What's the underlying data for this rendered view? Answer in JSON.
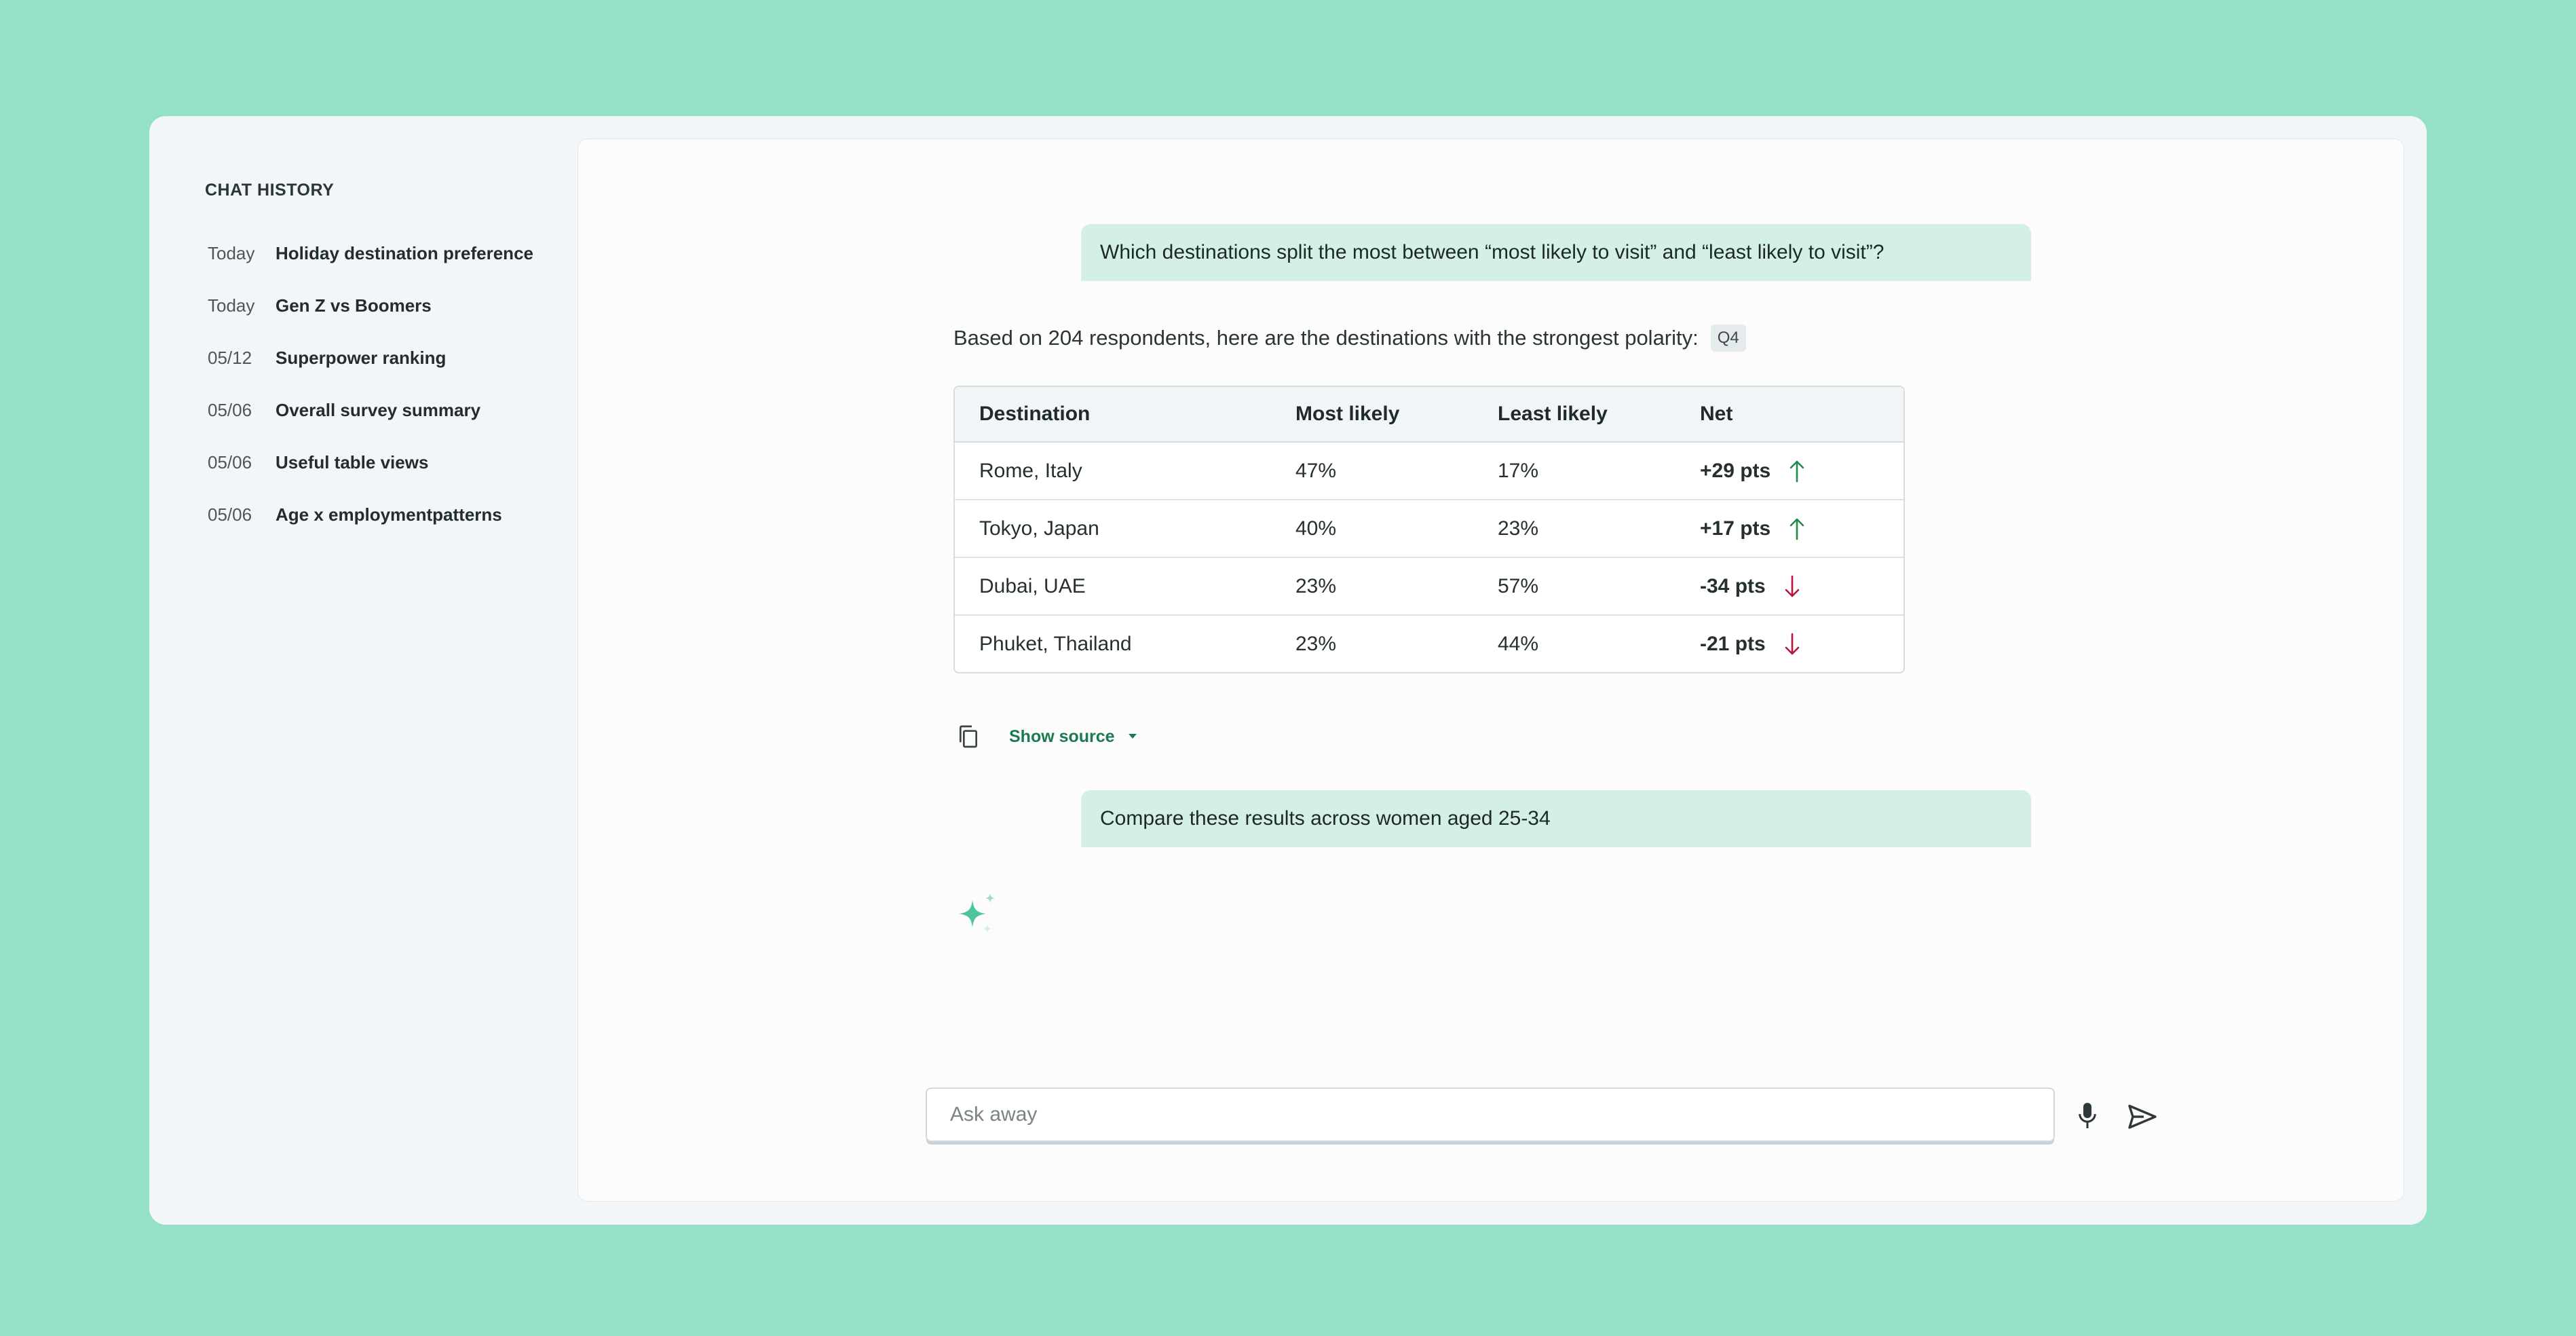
{
  "sidebar": {
    "heading": "CHAT HISTORY",
    "items": [
      {
        "date": "Today",
        "title": "Holiday destination preference"
      },
      {
        "date": "Today",
        "title": "Gen Z vs Boomers"
      },
      {
        "date": "05/12",
        "title": "Superpower ranking"
      },
      {
        "date": "05/06",
        "title": "Overall survey summary"
      },
      {
        "date": "05/06",
        "title": "Useful table views"
      },
      {
        "date": "05/06",
        "title": "Age x employmentpatterns"
      }
    ]
  },
  "conversation": {
    "user_message_1": "Which destinations split the most between “most likely to visit” and “least likely to visit”?",
    "answer_intro": "Based on 204 respondents, here are the destinations with the strongest polarity:",
    "question_badge": "Q4",
    "table": {
      "headers": [
        "Destination",
        "Most likely",
        "Least likely",
        "Net"
      ],
      "rows": [
        {
          "destination": "Rome, Italy",
          "most_likely": "47%",
          "least_likely": "17%",
          "net": "+29 pts",
          "trend": "up"
        },
        {
          "destination": "Tokyo, Japan",
          "most_likely": "40%",
          "least_likely": "23%",
          "net": "+17 pts",
          "trend": "up"
        },
        {
          "destination": "Dubai, UAE",
          "most_likely": "23%",
          "least_likely": "57%",
          "net": "-34 pts",
          "trend": "down"
        },
        {
          "destination": "Phuket, Thailand",
          "most_likely": "23%",
          "least_likely": "44%",
          "net": "-21 pts",
          "trend": "down"
        }
      ]
    },
    "show_source_label": "Show source",
    "user_message_2": "Compare these results across women aged 25-34"
  },
  "composer": {
    "placeholder": "Ask away",
    "value": ""
  },
  "icons": {
    "copy": "copy-icon",
    "caret": "caret-down-icon",
    "sparkle": "sparkle-icon",
    "mic": "microphone-icon",
    "send": "send-icon",
    "trend_up": "arrow-up-icon",
    "trend_down": "arrow-down-icon"
  },
  "colors": {
    "background": "#94e1c8",
    "user_bubble": "#d4efe3",
    "accent_green": "#1b7a4f",
    "trend_up": "#1f8a4c",
    "trend_down": "#b3173f",
    "sparkle": "#4cc59a"
  }
}
